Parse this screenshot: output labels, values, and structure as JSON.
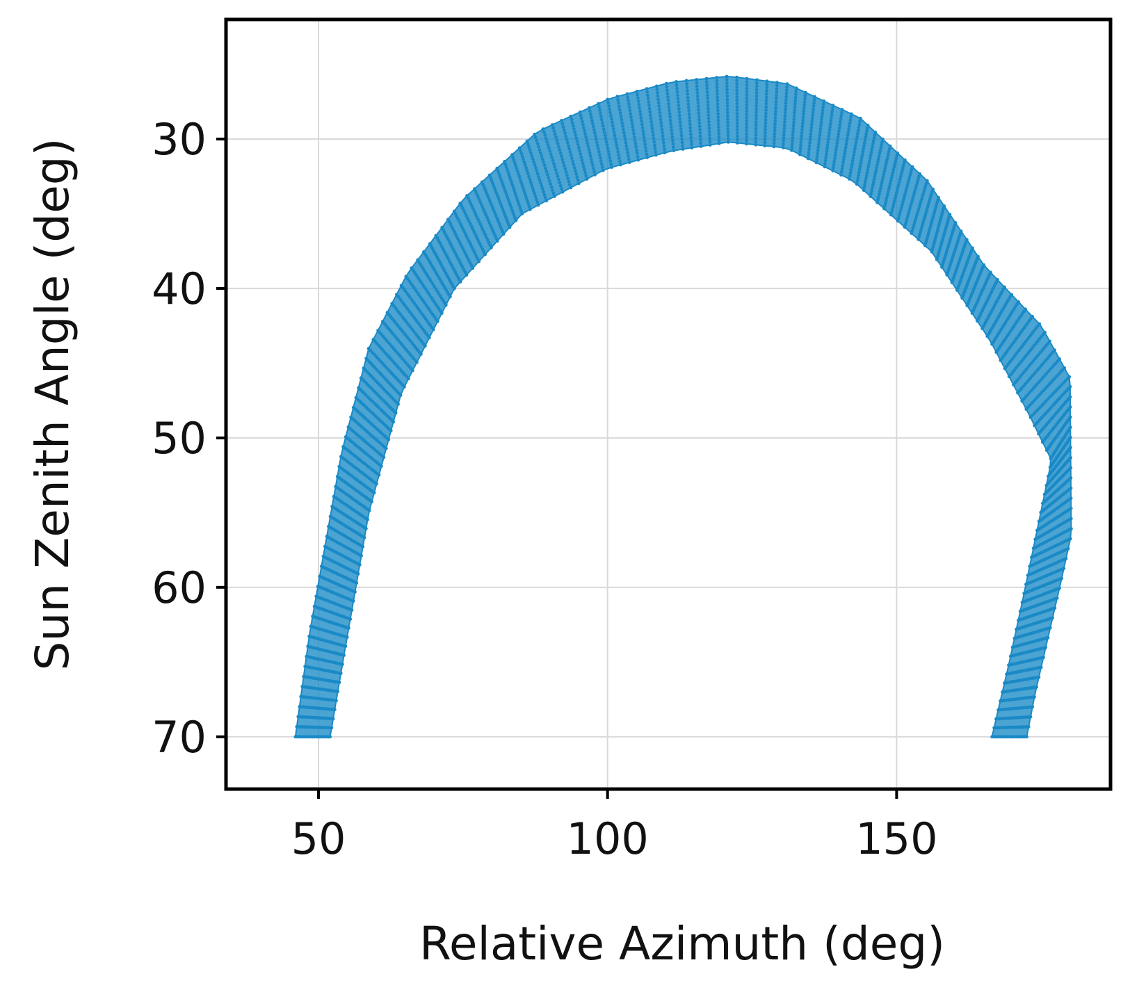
{
  "chart_data": {
    "type": "scatter",
    "xlabel": "Relative Azimuth (deg)",
    "ylabel": "Sun Zenith Angle (deg)",
    "xlim": [
      34,
      187
    ],
    "ylim": [
      73.5,
      22
    ],
    "y_inverted": true,
    "grid": true,
    "x_ticks": [
      50,
      100,
      150
    ],
    "y_ticks": [
      30,
      40,
      50,
      60,
      70
    ],
    "x_tick_labels": [
      "50",
      "100",
      "150"
    ],
    "y_tick_labels": [
      "30",
      "40",
      "50",
      "60",
      "70"
    ],
    "series": [
      {
        "color": "#1a8ac6",
        "band_lower_edge": {
          "x": [
            52,
            54.2,
            58.7,
            64.3,
            73.5,
            85.2,
            99.7,
            111,
            121,
            131,
            142.5,
            156,
            166.2,
            173,
            176.8,
            172,
            169.5,
            166.5
          ],
          "y": [
            70,
            65,
            55,
            47,
            40,
            35,
            32,
            30.8,
            30.2,
            30.6,
            32.8,
            37.5,
            43.5,
            48.5,
            51.5,
            60.5,
            65,
            70
          ]
        },
        "band_upper_edge": {
          "x": [
            46,
            48.5,
            54,
            58.7,
            65.4,
            75.1,
            87.9,
            100.3,
            111,
            121,
            131,
            143.7,
            155.3,
            165.2,
            175,
            180,
            180.2,
            178.2,
            174,
            172.5
          ],
          "y": [
            70,
            63,
            51,
            44,
            39,
            34,
            29.5,
            27.3,
            26.2,
            25.8,
            26.3,
            28.6,
            32.8,
            38.5,
            42.5,
            46,
            56.5,
            60,
            67,
            70
          ]
        }
      }
    ]
  }
}
